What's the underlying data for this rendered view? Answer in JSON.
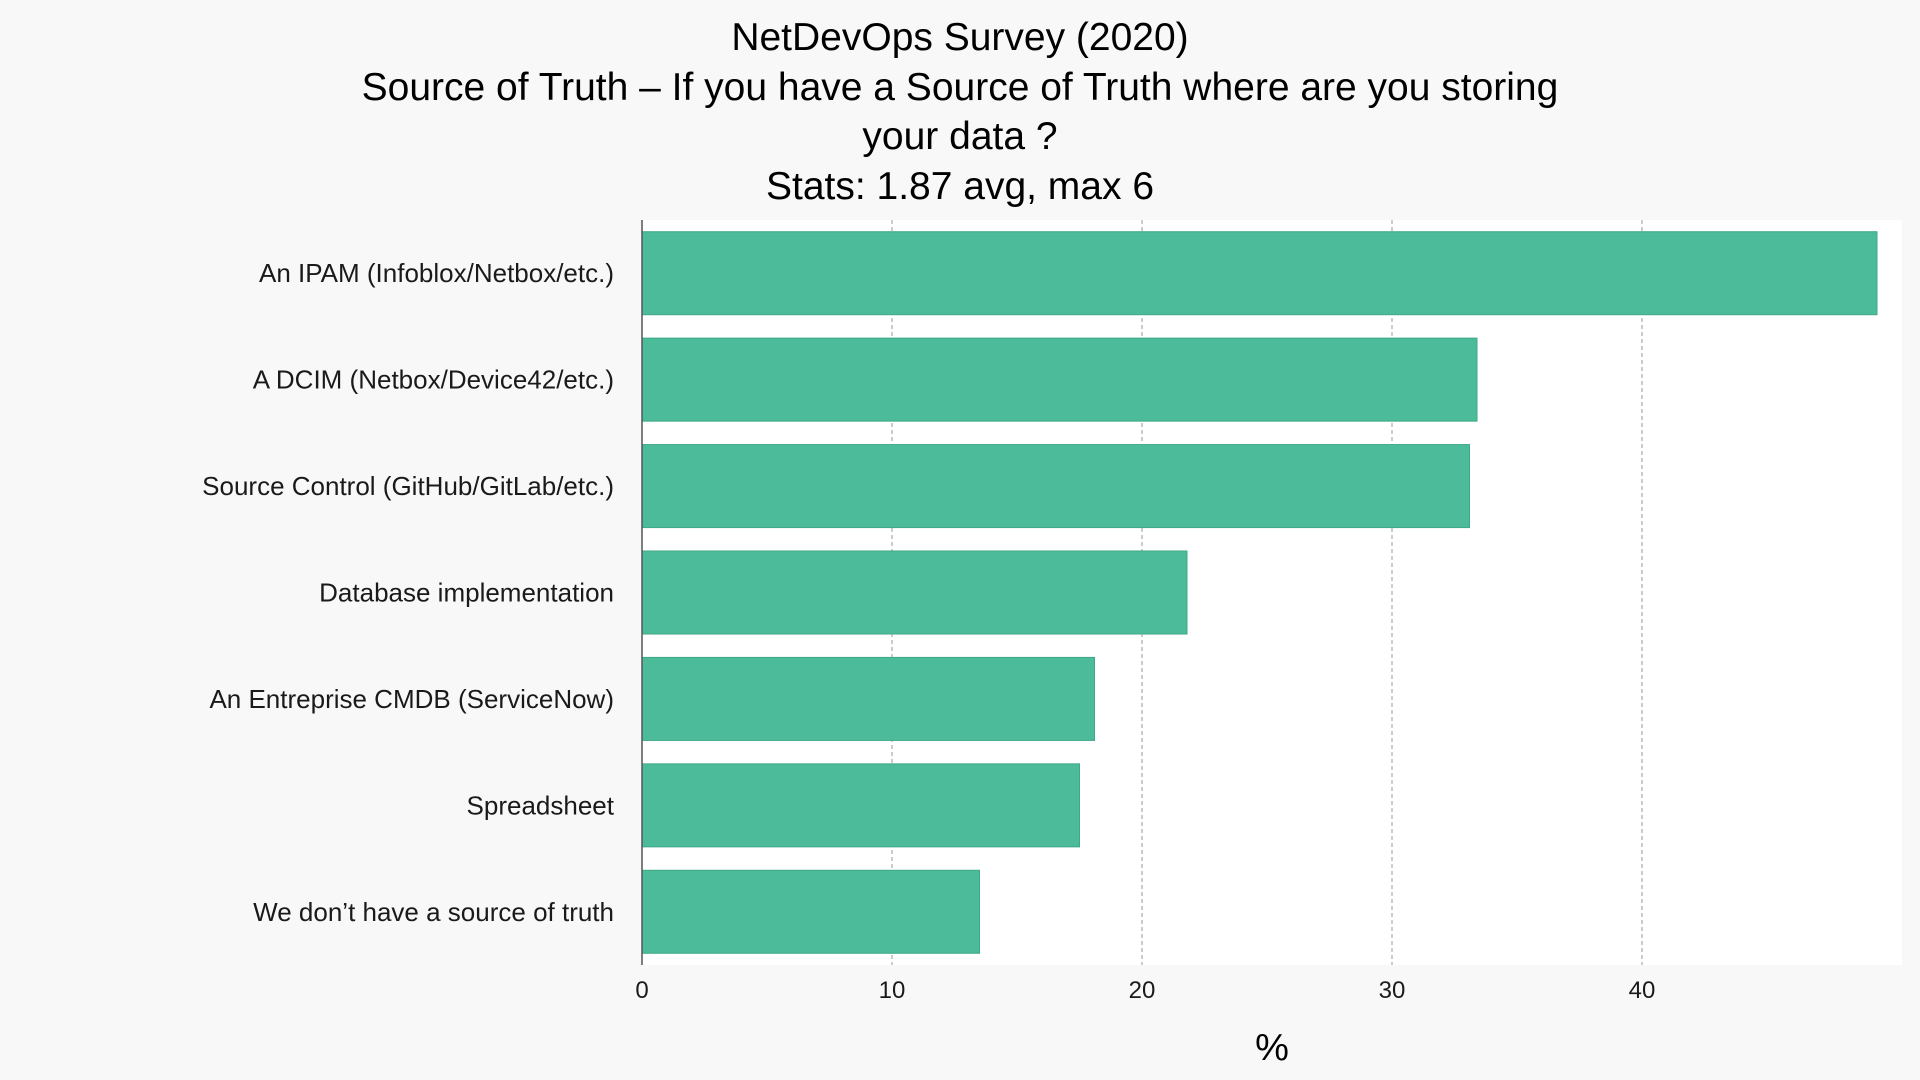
{
  "chart_data": {
    "type": "bar",
    "orientation": "horizontal",
    "title_lines": [
      "NetDevOps Survey (2020)",
      "Source of Truth – If you have a Source of Truth where are you storing",
      "your data ?",
      "Stats: 1.87 avg, max 6"
    ],
    "categories": [
      "An IPAM (Infoblox/Netbox/etc.)",
      "A DCIM (Netbox/Device42/etc.)",
      "Source Control (GitHub/GitLab/etc.)",
      "Database implementation",
      "An Entreprise CMDB (ServiceNow)",
      "Spreadsheet",
      "We don’t have a source of truth"
    ],
    "values": [
      49.4,
      33.4,
      33.1,
      21.8,
      18.1,
      17.5,
      13.5
    ],
    "xlabel": "%",
    "ylabel": "",
    "xlim": [
      0,
      50.4
    ],
    "xticks": [
      0,
      10,
      20,
      30,
      40
    ],
    "xtick_labels": [
      "0",
      "10",
      "20",
      "30",
      "40"
    ],
    "grid": "vertical dashed",
    "colors": {
      "bar": "#4bbb9a",
      "bar_edge": "#3fa887",
      "plot_background": "#ffffff",
      "figure_background": "#f8f8f8",
      "grid": "#9a9a9a",
      "axis": "#555555"
    }
  }
}
